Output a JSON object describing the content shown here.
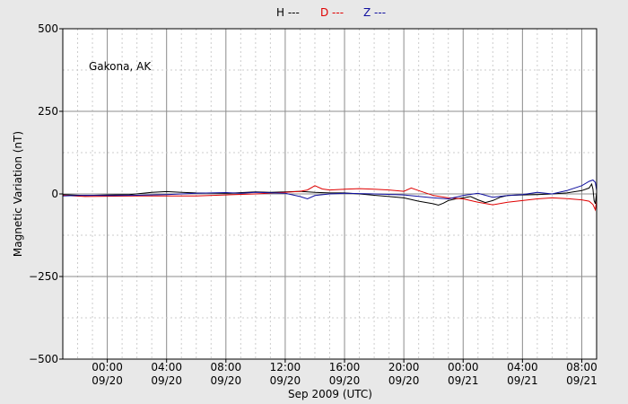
{
  "chart_data": {
    "type": "line",
    "xlabel": "Sep 2009 (UTC)",
    "ylabel": "Magnetic Variation (nT)",
    "annotation": "Gakona, AK",
    "x_unit": "UTC time (Sep 2009)",
    "xlim": [
      "09/19 21:00",
      "09/21 09:00"
    ],
    "ylim": [
      -500,
      500
    ],
    "y_major_ticks": [
      -500,
      -250,
      0,
      250,
      500
    ],
    "y_tick_labels": [
      "−500",
      "−250",
      "0",
      "250",
      "500"
    ],
    "y_minor_step": 125,
    "x_major_ticks": [
      {
        "time": "09/20 00:00",
        "l1": "00:00",
        "l2": "09/20"
      },
      {
        "time": "09/20 04:00",
        "l1": "04:00",
        "l2": "09/20"
      },
      {
        "time": "09/20 08:00",
        "l1": "08:00",
        "l2": "09/20"
      },
      {
        "time": "09/20 12:00",
        "l1": "12:00",
        "l2": "09/20"
      },
      {
        "time": "09/20 16:00",
        "l1": "16:00",
        "l2": "09/20"
      },
      {
        "time": "09/20 20:00",
        "l1": "20:00",
        "l2": "09/20"
      },
      {
        "time": "09/21 00:00",
        "l1": "00:00",
        "l2": "09/21"
      },
      {
        "time": "09/21 04:00",
        "l1": "04:00",
        "l2": "09/21"
      },
      {
        "time": "09/21 08:00",
        "l1": "08:00",
        "l2": "09/21"
      }
    ],
    "x_minor_step_hours": 1,
    "grid": true,
    "legend_position": "top-center",
    "series": [
      {
        "name": "H ---",
        "color": "#000000",
        "points": [
          [
            "09/19 21:00",
            -2
          ],
          [
            "09/19 22:30",
            -5
          ],
          [
            "09/20 00:00",
            -3
          ],
          [
            "09/20 01:30",
            -2
          ],
          [
            "09/20 03:00",
            5
          ],
          [
            "09/20 04:00",
            7
          ],
          [
            "09/20 05:00",
            5
          ],
          [
            "09/20 06:00",
            3
          ],
          [
            "09/20 08:00",
            2
          ],
          [
            "09/20 10:00",
            6
          ],
          [
            "09/20 11:00",
            5
          ],
          [
            "09/20 12:00",
            6
          ],
          [
            "09/20 13:00",
            8
          ],
          [
            "09/20 14:00",
            5
          ],
          [
            "09/20 15:00",
            3
          ],
          [
            "09/20 16:00",
            3
          ],
          [
            "09/20 17:00",
            0
          ],
          [
            "09/20 18:00",
            -4
          ],
          [
            "09/20 19:00",
            -8
          ],
          [
            "09/20 20:00",
            -12
          ],
          [
            "09/20 21:00",
            -22
          ],
          [
            "09/20 22:00",
            -30
          ],
          [
            "09/20 22:20",
            -34
          ],
          [
            "09/20 22:40",
            -28
          ],
          [
            "09/20 23:00",
            -20
          ],
          [
            "09/20 23:30",
            -15
          ],
          [
            "09/21 00:00",
            -12
          ],
          [
            "09/21 00:30",
            -8
          ],
          [
            "09/21 01:00",
            -18
          ],
          [
            "09/21 01:30",
            -26
          ],
          [
            "09/21 02:00",
            -20
          ],
          [
            "09/21 02:30",
            -10
          ],
          [
            "09/21 03:00",
            -5
          ],
          [
            "09/21 04:00",
            -3
          ],
          [
            "09/21 05:00",
            -2
          ],
          [
            "09/21 06:00",
            0
          ],
          [
            "09/21 07:00",
            3
          ],
          [
            "09/21 08:00",
            10
          ],
          [
            "09/21 08:30",
            18
          ],
          [
            "09/21 08:40",
            30
          ],
          [
            "09/21 08:45",
            15
          ],
          [
            "09/21 08:50",
            -20
          ],
          [
            "09/21 08:55",
            -30
          ],
          [
            "09/21 09:00",
            5
          ]
        ]
      },
      {
        "name": "D ---",
        "color": "#e00000",
        "points": [
          [
            "09/19 21:00",
            -4
          ],
          [
            "09/19 22:30",
            -8
          ],
          [
            "09/20 00:00",
            -7
          ],
          [
            "09/20 02:00",
            -6
          ],
          [
            "09/20 04:00",
            -6
          ],
          [
            "09/20 06:00",
            -6
          ],
          [
            "09/20 08:00",
            -3
          ],
          [
            "09/20 10:00",
            0
          ],
          [
            "09/20 12:00",
            5
          ],
          [
            "09/20 13:00",
            8
          ],
          [
            "09/20 13:30",
            12
          ],
          [
            "09/20 14:00",
            25
          ],
          [
            "09/20 14:30",
            15
          ],
          [
            "09/20 15:00",
            12
          ],
          [
            "09/20 16:00",
            14
          ],
          [
            "09/20 17:00",
            16
          ],
          [
            "09/20 18:00",
            14
          ],
          [
            "09/20 19:00",
            12
          ],
          [
            "09/20 20:00",
            8
          ],
          [
            "09/20 20:30",
            18
          ],
          [
            "09/20 21:00",
            10
          ],
          [
            "09/20 22:00",
            -5
          ],
          [
            "09/20 23:00",
            -12
          ],
          [
            "09/21 00:00",
            -15
          ],
          [
            "09/21 01:00",
            -25
          ],
          [
            "09/21 02:00",
            -33
          ],
          [
            "09/21 03:00",
            -25
          ],
          [
            "09/21 04:00",
            -20
          ],
          [
            "09/21 05:00",
            -15
          ],
          [
            "09/21 06:00",
            -12
          ],
          [
            "09/21 07:00",
            -14
          ],
          [
            "09/21 08:00",
            -18
          ],
          [
            "09/21 08:30",
            -22
          ],
          [
            "09/21 08:45",
            -32
          ],
          [
            "09/21 08:55",
            -48
          ],
          [
            "09/21 09:00",
            -20
          ]
        ]
      },
      {
        "name": "Z ---",
        "color": "#1010a0",
        "points": [
          [
            "09/19 21:00",
            -6
          ],
          [
            "09/19 22:30",
            -4
          ],
          [
            "09/20 00:00",
            -5
          ],
          [
            "09/20 02:00",
            -4
          ],
          [
            "09/20 04:00",
            -2
          ],
          [
            "09/20 06:00",
            2
          ],
          [
            "09/20 08:00",
            4
          ],
          [
            "09/20 09:00",
            2
          ],
          [
            "09/20 10:00",
            5
          ],
          [
            "09/20 12:00",
            2
          ],
          [
            "09/20 13:00",
            -8
          ],
          [
            "09/20 13:30",
            -15
          ],
          [
            "09/20 14:00",
            -5
          ],
          [
            "09/20 15:00",
            0
          ],
          [
            "09/20 16:00",
            2
          ],
          [
            "09/20 18:00",
            0
          ],
          [
            "09/20 20:00",
            -3
          ],
          [
            "09/20 22:00",
            -12
          ],
          [
            "09/20 23:00",
            -15
          ],
          [
            "09/21 00:00",
            -5
          ],
          [
            "09/21 01:00",
            2
          ],
          [
            "09/21 02:00",
            -10
          ],
          [
            "09/21 03:00",
            -5
          ],
          [
            "09/21 04:00",
            -2
          ],
          [
            "09/21 05:00",
            5
          ],
          [
            "09/21 06:00",
            0
          ],
          [
            "09/21 07:00",
            10
          ],
          [
            "09/21 08:00",
            25
          ],
          [
            "09/21 08:30",
            38
          ],
          [
            "09/21 08:45",
            42
          ],
          [
            "09/21 08:55",
            35
          ],
          [
            "09/21 09:00",
            10
          ]
        ]
      }
    ]
  }
}
